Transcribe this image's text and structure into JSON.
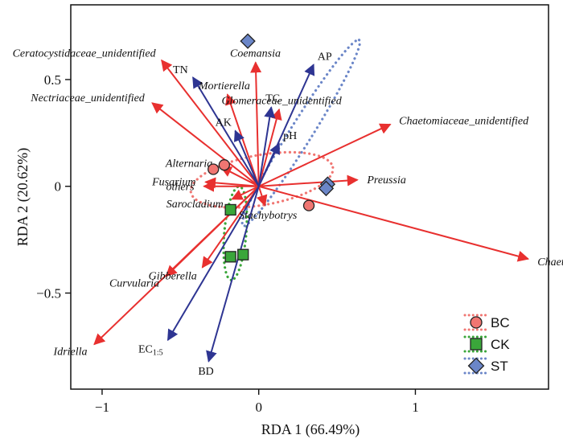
{
  "chart_data": {
    "type": "scatter",
    "subtype": "rda_biplot",
    "xlabel": "RDA 1 (66.49%)",
    "ylabel": "RDA 2 (20.62%)",
    "xlim": [
      -1.2,
      1.85
    ],
    "ylim": [
      -0.95,
      0.85
    ],
    "xticks": [
      -1,
      0,
      1
    ],
    "yticks": [
      -0.5,
      0,
      0.5
    ],
    "grid": false,
    "legend_position": "bottom-right",
    "colors": {
      "species_arrow": "#e8302f",
      "env_arrow": "#2e3592",
      "BC": "#f07672",
      "CK": "#3aa63a",
      "ST": "#6b86c8"
    },
    "species_arrows": [
      {
        "label": "Ceratocystidaceae_unidentified",
        "x": -0.62,
        "y": 0.59
      },
      {
        "label": "Nectriaceae_unidentified",
        "x": -0.68,
        "y": 0.39
      },
      {
        "label": "Mortierella",
        "x": -0.2,
        "y": 0.43
      },
      {
        "label": "Coemansia",
        "x": -0.02,
        "y": 0.58
      },
      {
        "label": "Glomeraceae_unidentified",
        "x": 0.13,
        "y": 0.36
      },
      {
        "label": "Chaetomiaceae_unidentified",
        "x": 0.84,
        "y": 0.29
      },
      {
        "label": "Preussia",
        "x": 0.63,
        "y": 0.03
      },
      {
        "label": "Chaetomium",
        "x": 1.72,
        "y": -0.34
      },
      {
        "label": "Stachybotrys",
        "x": 0.04,
        "y": -0.09
      },
      {
        "label": "Alternaria",
        "x": -0.24,
        "y": 0.09
      },
      {
        "label": "others",
        "x": -0.35,
        "y": 0.0
      },
      {
        "label": "Fusarium",
        "x": -0.34,
        "y": 0.02
      },
      {
        "label": "Sarocladium",
        "x": -0.17,
        "y": -0.06
      },
      {
        "label": "Gibberella",
        "x": -0.36,
        "y": -0.38
      },
      {
        "label": "Curvularia",
        "x": -0.59,
        "y": -0.42
      },
      {
        "label": "Idriella",
        "x": -1.05,
        "y": -0.74
      }
    ],
    "env_arrows": [
      {
        "label": "AP",
        "x": 0.35,
        "y": 0.57
      },
      {
        "label": "TN",
        "x": -0.42,
        "y": 0.51
      },
      {
        "label": "TC",
        "x": 0.08,
        "y": 0.37
      },
      {
        "label": "AK",
        "x": -0.15,
        "y": 0.26
      },
      {
        "label": "pH",
        "x": 0.13,
        "y": 0.2
      },
      {
        "label": "EC",
        "sub": "1:5",
        "x": -0.58,
        "y": -0.72
      },
      {
        "label": "BD",
        "x": -0.32,
        "y": -0.82
      }
    ],
    "groups": [
      {
        "name": "BC",
        "shape": "circle",
        "points": [
          [
            -0.29,
            0.08
          ],
          [
            -0.22,
            0.1
          ],
          [
            0.32,
            -0.09
          ]
        ]
      },
      {
        "name": "CK",
        "shape": "square",
        "points": [
          [
            -0.18,
            -0.11
          ],
          [
            -0.18,
            -0.33
          ],
          [
            -0.1,
            -0.32
          ]
        ]
      },
      {
        "name": "ST",
        "shape": "diamond",
        "points": [
          [
            -0.07,
            0.68
          ],
          [
            0.44,
            0.01
          ],
          [
            0.43,
            -0.01
          ]
        ]
      }
    ],
    "ellipses": [
      {
        "group": "BC",
        "center": [
          0.02,
          0.03
        ],
        "rx": 0.46,
        "ry": 0.16,
        "angle_deg": -10
      },
      {
        "group": "CK",
        "center": [
          -0.15,
          -0.22
        ],
        "rx": 0.3,
        "ry": 0.07,
        "angle_deg": 95
      },
      {
        "group": "ST",
        "center": [
          0.27,
          0.25
        ],
        "rx": 0.7,
        "ry": 0.07,
        "angle_deg": -58
      }
    ]
  }
}
